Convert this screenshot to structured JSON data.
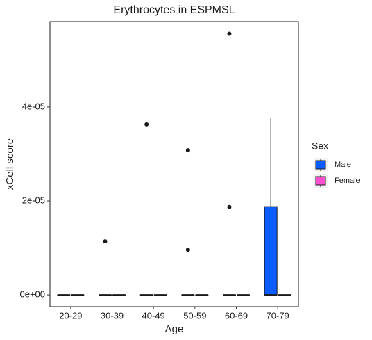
{
  "chart_data": {
    "type": "boxplot",
    "title": "Erythrocytes in ESPMSL",
    "x_label": "Age",
    "y_label": "xCell score",
    "categories": [
      "20-29",
      "30-39",
      "40-49",
      "50-59",
      "60-69",
      "70-79"
    ],
    "ylim": [
      -2.5e-06,
      5.82e-05
    ],
    "yticks": [
      {
        "value": 0,
        "label": "0e+00"
      },
      {
        "value": 2e-05,
        "label": "2e-05"
      },
      {
        "value": 4e-05,
        "label": "4e-05"
      }
    ],
    "legend_title": "Sex",
    "legend_position": "right",
    "series": [
      {
        "name": "Male",
        "color": "#0a5cff",
        "boxes": [
          {
            "min": 0,
            "q1": 0,
            "median": 0,
            "q3": 0,
            "max": 0,
            "outliers": []
          },
          {
            "min": 0,
            "q1": 0,
            "median": 0,
            "q3": 0,
            "max": 0,
            "outliers": [
              1.14e-05
            ]
          },
          {
            "min": 0,
            "q1": 0,
            "median": 0,
            "q3": 0,
            "max": 0,
            "outliers": [
              3.63e-05
            ]
          },
          {
            "min": 0,
            "q1": 0,
            "median": 0,
            "q3": 0,
            "max": 0,
            "outliers": [
              3.08e-05,
              9.6e-06
            ]
          },
          {
            "min": 0,
            "q1": 0,
            "median": 0,
            "q3": 0,
            "max": 0,
            "outliers": [
              5.56e-05,
              1.87e-05
            ]
          },
          {
            "min": 0,
            "q1": 0,
            "median": 0,
            "q3": 1.88e-05,
            "max": 3.76e-05,
            "outliers": []
          }
        ]
      },
      {
        "name": "Female",
        "color": "#ff4fcf",
        "boxes": [
          {
            "min": 0,
            "q1": 0,
            "median": 0,
            "q3": 0,
            "max": 0,
            "outliers": []
          },
          {
            "min": 0,
            "q1": 0,
            "median": 0,
            "q3": 0,
            "max": 0,
            "outliers": []
          },
          {
            "min": 0,
            "q1": 0,
            "median": 0,
            "q3": 0,
            "max": 0,
            "outliers": []
          },
          {
            "min": 0,
            "q1": 0,
            "median": 0,
            "q3": 0,
            "max": 0,
            "outliers": []
          },
          {
            "min": 0,
            "q1": 0,
            "median": 0,
            "q3": 0,
            "max": 0,
            "outliers": []
          },
          {
            "min": 0,
            "q1": 0,
            "median": 0,
            "q3": 0,
            "max": 0,
            "outliers": []
          }
        ]
      }
    ]
  }
}
